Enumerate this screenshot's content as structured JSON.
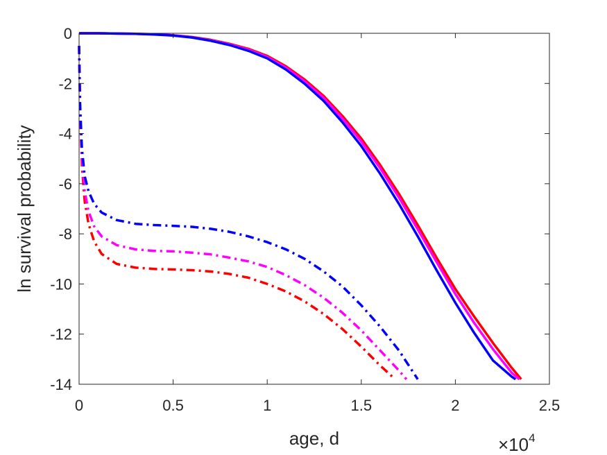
{
  "chart_data": {
    "type": "line",
    "title": "",
    "xlabel": "age, d",
    "ylabel": "ln survival probability",
    "x_exponent_base": "×10",
    "x_exponent_power": "4",
    "xlim": [
      0,
      25000
    ],
    "ylim": [
      -14,
      0
    ],
    "xticks": [
      0,
      5000,
      10000,
      15000,
      20000,
      25000
    ],
    "xtick_labels": [
      "0",
      "0.5",
      "1",
      "1.5",
      "2",
      "2.5"
    ],
    "yticks": [
      0,
      -2,
      -4,
      -6,
      -8,
      -10,
      -12,
      -14
    ],
    "ytick_labels": [
      "0",
      "-2",
      "-4",
      "-6",
      "-8",
      "-10",
      "-12",
      "-14"
    ],
    "grid": false,
    "legend": "none",
    "series": [
      {
        "color": "#ff0000",
        "style": "solid",
        "x": [
          0,
          1000,
          2000,
          3000,
          4000,
          5000,
          6000,
          7000,
          8000,
          9000,
          10000,
          11000,
          12000,
          13000,
          14000,
          15000,
          16000,
          17000,
          18000,
          19000,
          20000,
          21000,
          22000,
          23000,
          23500
        ],
        "y": [
          0,
          0,
          -0.01,
          -0.02,
          -0.04,
          -0.08,
          -0.15,
          -0.26,
          -0.42,
          -0.62,
          -0.9,
          -1.32,
          -1.85,
          -2.5,
          -3.3,
          -4.2,
          -5.25,
          -6.4,
          -7.65,
          -8.95,
          -10.2,
          -11.3,
          -12.35,
          -13.35,
          -13.8
        ]
      },
      {
        "color": "#ff00ff",
        "style": "solid",
        "x": [
          0,
          1000,
          2000,
          3000,
          4000,
          5000,
          6000,
          7000,
          8000,
          9000,
          10000,
          11000,
          12000,
          13000,
          14000,
          15000,
          16000,
          17000,
          18000,
          19000,
          20000,
          21000,
          22000,
          23000,
          23400
        ],
        "y": [
          0,
          0,
          -0.01,
          -0.02,
          -0.04,
          -0.08,
          -0.16,
          -0.28,
          -0.44,
          -0.65,
          -0.94,
          -1.37,
          -1.92,
          -2.58,
          -3.4,
          -4.32,
          -5.38,
          -6.55,
          -7.82,
          -9.12,
          -10.4,
          -11.55,
          -12.6,
          -13.55,
          -13.8
        ]
      },
      {
        "color": "#0000ff",
        "style": "solid",
        "x": [
          0,
          1000,
          2000,
          3000,
          4000,
          5000,
          6000,
          7000,
          8000,
          9000,
          10000,
          11000,
          12000,
          13000,
          14000,
          15000,
          16000,
          17000,
          18000,
          19000,
          20000,
          21000,
          22000,
          23000,
          23200
        ],
        "y": [
          0,
          0,
          -0.01,
          -0.02,
          -0.05,
          -0.09,
          -0.17,
          -0.3,
          -0.47,
          -0.7,
          -1.0,
          -1.45,
          -2.02,
          -2.7,
          -3.55,
          -4.5,
          -5.6,
          -6.8,
          -8.1,
          -9.45,
          -10.75,
          -11.95,
          -13.05,
          -13.7,
          -13.8
        ]
      },
      {
        "color": "#ff0000",
        "style": "dashdot",
        "x": [
          0,
          50,
          150,
          300,
          500,
          800,
          1200,
          2000,
          3000,
          4000,
          5000,
          6000,
          7000,
          8000,
          9000,
          10000,
          11000,
          12000,
          13000,
          14000,
          15000,
          16000,
          16800
        ],
        "y": [
          -0.5,
          -3.0,
          -5.3,
          -6.7,
          -7.6,
          -8.3,
          -8.8,
          -9.2,
          -9.35,
          -9.4,
          -9.42,
          -9.45,
          -9.5,
          -9.6,
          -9.75,
          -10.0,
          -10.3,
          -10.7,
          -11.2,
          -11.8,
          -12.5,
          -13.25,
          -13.8
        ]
      },
      {
        "color": "#ff00ff",
        "style": "dashdot",
        "x": [
          0,
          50,
          150,
          300,
          500,
          800,
          1200,
          2000,
          3000,
          4000,
          5000,
          6000,
          7000,
          8000,
          9000,
          10000,
          11000,
          12000,
          13000,
          14000,
          15000,
          16000,
          17000,
          17400
        ],
        "y": [
          -0.5,
          -3.0,
          -5.0,
          -6.3,
          -7.1,
          -7.7,
          -8.1,
          -8.45,
          -8.62,
          -8.68,
          -8.7,
          -8.75,
          -8.82,
          -8.95,
          -9.1,
          -9.32,
          -9.65,
          -10.05,
          -10.55,
          -11.15,
          -11.85,
          -12.65,
          -13.45,
          -13.8
        ]
      },
      {
        "color": "#0000ff",
        "style": "dashdot",
        "x": [
          0,
          50,
          150,
          300,
          500,
          800,
          1200,
          2000,
          3000,
          4000,
          5000,
          6000,
          7000,
          8000,
          9000,
          10000,
          11000,
          12000,
          13000,
          14000,
          15000,
          16000,
          17000,
          18000
        ],
        "y": [
          -0.5,
          -2.8,
          -4.6,
          -5.7,
          -6.3,
          -6.8,
          -7.15,
          -7.45,
          -7.6,
          -7.65,
          -7.68,
          -7.72,
          -7.8,
          -7.92,
          -8.1,
          -8.33,
          -8.62,
          -9.0,
          -9.5,
          -10.1,
          -10.85,
          -11.7,
          -12.65,
          -13.8
        ]
      }
    ]
  }
}
